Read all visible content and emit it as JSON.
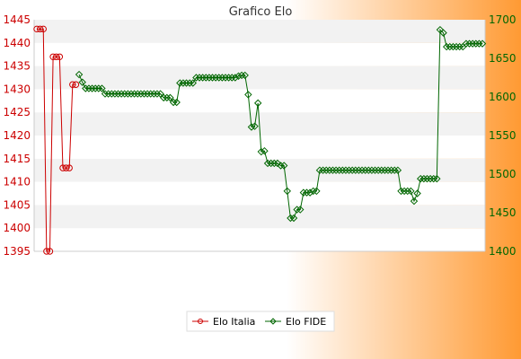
{
  "chart_data": {
    "type": "line",
    "title": "Grafico Elo",
    "y_left": {
      "ylim": [
        1395,
        1445
      ],
      "ticks": [
        1395,
        1400,
        1405,
        1410,
        1415,
        1420,
        1425,
        1430,
        1435,
        1440,
        1445
      ]
    },
    "y_right": {
      "ylim": [
        1400,
        1700
      ],
      "ticks": [
        1400,
        1450,
        1500,
        1550,
        1600,
        1650,
        1700
      ]
    },
    "x_tick_labels_note": "",
    "legend_position": "bottom",
    "grid": "horizontal-bands",
    "series": [
      {
        "name": "Elo Italia",
        "axis": "left",
        "color": "#cc0000",
        "marker": "circle",
        "points": [
          [
            0,
            1443
          ],
          [
            1,
            1443
          ],
          [
            2,
            1443
          ],
          [
            3,
            1395
          ],
          [
            4,
            1395
          ],
          [
            5,
            1437
          ],
          [
            6,
            1437
          ],
          [
            7,
            1437
          ],
          [
            8,
            1413
          ],
          [
            9,
            1413
          ],
          [
            10,
            1413
          ],
          [
            11,
            1431
          ],
          [
            12,
            1431
          ]
        ]
      },
      {
        "name": "Elo FIDE",
        "axis": "right",
        "color": "#006600",
        "marker": "diamond",
        "points": [
          [
            13,
            1629
          ],
          [
            14,
            1619
          ],
          [
            15,
            1611
          ],
          [
            16,
            1611
          ],
          [
            17,
            1611
          ],
          [
            18,
            1611
          ],
          [
            19,
            1611
          ],
          [
            20,
            1611
          ],
          [
            21,
            1604
          ],
          [
            22,
            1604
          ],
          [
            23,
            1604
          ],
          [
            24,
            1604
          ],
          [
            25,
            1604
          ],
          [
            26,
            1604
          ],
          [
            27,
            1604
          ],
          [
            28,
            1604
          ],
          [
            29,
            1604
          ],
          [
            30,
            1604
          ],
          [
            31,
            1604
          ],
          [
            32,
            1604
          ],
          [
            33,
            1604
          ],
          [
            34,
            1604
          ],
          [
            35,
            1604
          ],
          [
            36,
            1604
          ],
          [
            37,
            1604
          ],
          [
            38,
            1604
          ],
          [
            39,
            1599
          ],
          [
            40,
            1599
          ],
          [
            41,
            1599
          ],
          [
            42,
            1593
          ],
          [
            43,
            1593
          ],
          [
            44,
            1618
          ],
          [
            45,
            1618
          ],
          [
            46,
            1618
          ],
          [
            47,
            1618
          ],
          [
            48,
            1618
          ],
          [
            49,
            1625
          ],
          [
            50,
            1625
          ],
          [
            51,
            1625
          ],
          [
            52,
            1625
          ],
          [
            53,
            1625
          ],
          [
            54,
            1625
          ],
          [
            55,
            1625
          ],
          [
            56,
            1625
          ],
          [
            57,
            1625
          ],
          [
            58,
            1625
          ],
          [
            59,
            1625
          ],
          [
            60,
            1625
          ],
          [
            61,
            1625
          ],
          [
            62,
            1627
          ],
          [
            63,
            1628
          ],
          [
            64,
            1628
          ],
          [
            65,
            1603
          ],
          [
            66,
            1561
          ],
          [
            67,
            1562
          ],
          [
            68,
            1592
          ],
          [
            69,
            1529
          ],
          [
            70,
            1530
          ],
          [
            71,
            1514
          ],
          [
            72,
            1514
          ],
          [
            73,
            1514
          ],
          [
            74,
            1514
          ],
          [
            75,
            1511
          ],
          [
            76,
            1511
          ],
          [
            77,
            1478
          ],
          [
            78,
            1443
          ],
          [
            79,
            1443
          ],
          [
            80,
            1454
          ],
          [
            81,
            1454
          ],
          [
            82,
            1476
          ],
          [
            83,
            1476
          ],
          [
            84,
            1476
          ],
          [
            85,
            1478
          ],
          [
            86,
            1478
          ],
          [
            87,
            1505
          ],
          [
            88,
            1505
          ],
          [
            89,
            1505
          ],
          [
            90,
            1505
          ],
          [
            91,
            1505
          ],
          [
            92,
            1505
          ],
          [
            93,
            1505
          ],
          [
            94,
            1505
          ],
          [
            95,
            1505
          ],
          [
            96,
            1505
          ],
          [
            97,
            1505
          ],
          [
            98,
            1505
          ],
          [
            99,
            1505
          ],
          [
            100,
            1505
          ],
          [
            101,
            1505
          ],
          [
            102,
            1505
          ],
          [
            103,
            1505
          ],
          [
            104,
            1505
          ],
          [
            105,
            1505
          ],
          [
            106,
            1505
          ],
          [
            107,
            1505
          ],
          [
            108,
            1505
          ],
          [
            109,
            1505
          ],
          [
            110,
            1505
          ],
          [
            111,
            1505
          ],
          [
            112,
            1478
          ],
          [
            113,
            1478
          ],
          [
            114,
            1478
          ],
          [
            115,
            1478
          ],
          [
            116,
            1465
          ],
          [
            117,
            1475
          ],
          [
            118,
            1494
          ],
          [
            119,
            1494
          ],
          [
            120,
            1494
          ],
          [
            121,
            1494
          ],
          [
            122,
            1494
          ],
          [
            123,
            1494
          ],
          [
            124,
            1687
          ],
          [
            125,
            1683
          ],
          [
            126,
            1665
          ],
          [
            127,
            1665
          ],
          [
            128,
            1665
          ],
          [
            129,
            1665
          ],
          [
            130,
            1665
          ],
          [
            131,
            1665
          ],
          [
            132,
            1669
          ],
          [
            133,
            1669
          ],
          [
            134,
            1669
          ],
          [
            135,
            1669
          ],
          [
            136,
            1669
          ],
          [
            137,
            1669
          ]
        ]
      }
    ]
  }
}
